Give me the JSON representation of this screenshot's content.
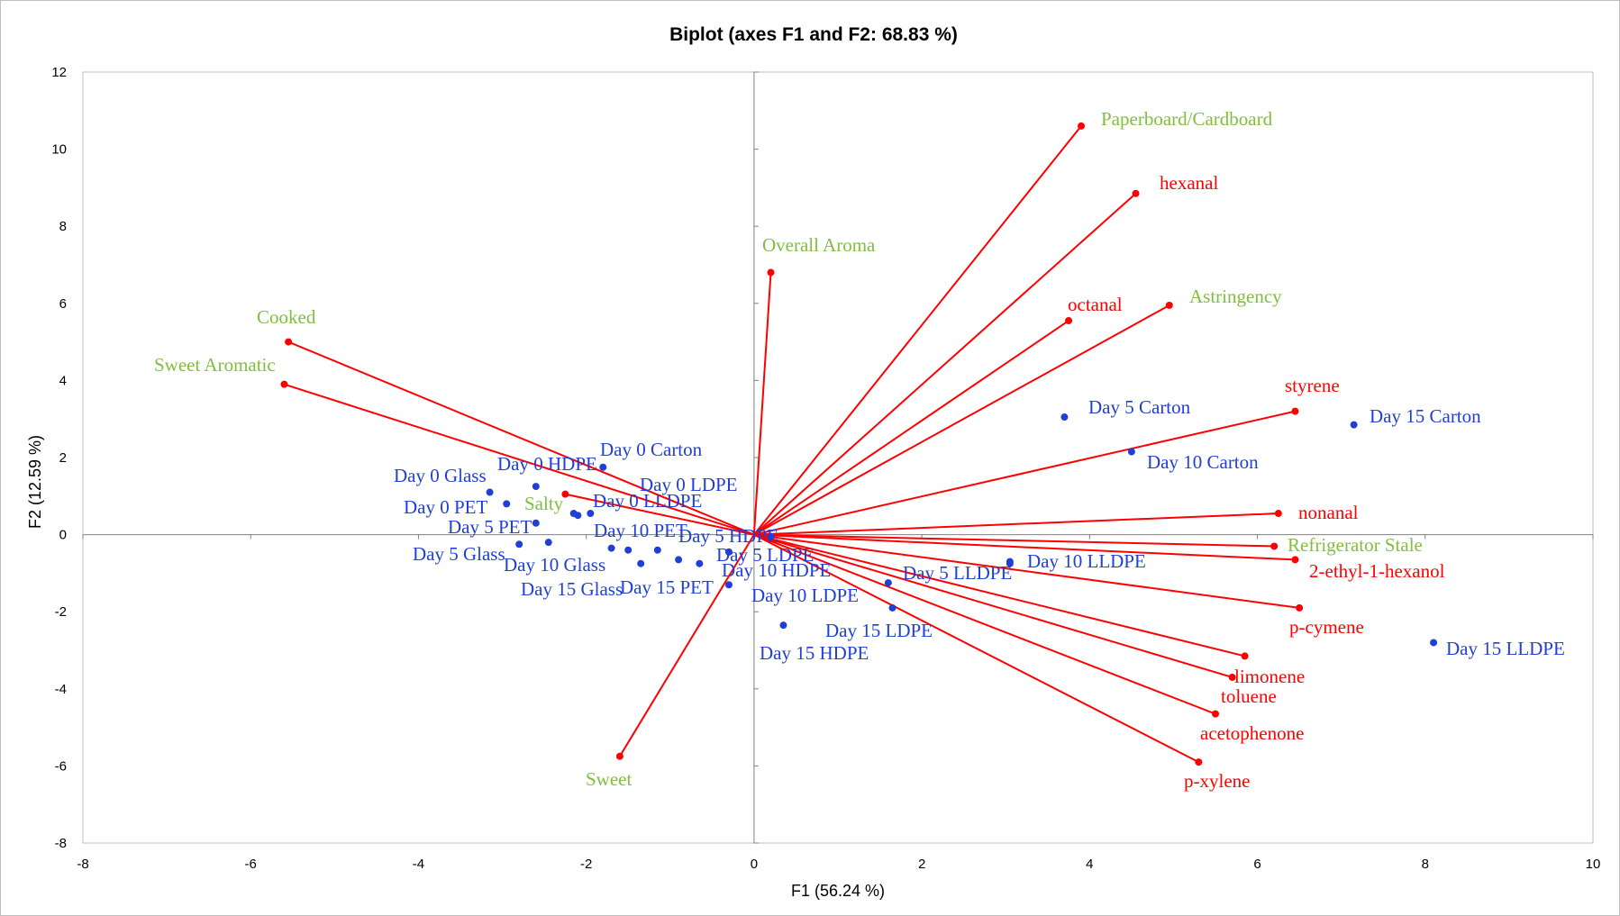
{
  "chart_data": {
    "type": "scatter",
    "title": "Biplot (axes F1 and F2: 68.83 %)",
    "xlabel": "F1 (56.24 %)",
    "ylabel": "F2 (12.59 %)",
    "xlim": [
      -8,
      10
    ],
    "ylim": [
      -8,
      12
    ],
    "xticks": [
      -8,
      -6,
      -4,
      -2,
      0,
      2,
      4,
      6,
      8,
      10
    ],
    "yticks": [
      -8,
      -6,
      -4,
      -2,
      0,
      2,
      4,
      6,
      8,
      10,
      12
    ],
    "grid": false,
    "colors": {
      "observations": "#1f3fd6",
      "volatiles": "#ff0000",
      "sensory": "#7fbf3f",
      "vectors": "#ff0000"
    },
    "observations": [
      {
        "label": "Day 0 Carton",
        "x": -1.8,
        "y": 1.75
      },
      {
        "label": "Day 0 HDPE",
        "x": -2.6,
        "y": 1.25
      },
      {
        "label": "Day 0 Glass",
        "x": -3.15,
        "y": 1.1
      },
      {
        "label": "Day 0 PET",
        "x": -2.95,
        "y": 0.8
      },
      {
        "label": "Day 0 LDPE",
        "x": -1.95,
        "y": 0.55
      },
      {
        "label": "Day 0 LLDPE",
        "x": -2.1,
        "y": 0.5
      },
      {
        "label": "Day 5 PET",
        "x": -2.6,
        "y": 0.3
      },
      {
        "label": "Day 5 Glass",
        "x": -2.8,
        "y": -0.25
      },
      {
        "label": "Day 10 Glass",
        "x": -2.45,
        "y": -0.2
      },
      {
        "label": "Day 10 PET",
        "x": -1.7,
        "y": -0.35
      },
      {
        "label": "Day 15 Glass",
        "x": -1.35,
        "y": -0.75
      },
      {
        "label": "Day 15 PET",
        "x": -0.65,
        "y": -0.75
      },
      {
        "label": "Day 5 HDPE",
        "x": 0.2,
        "y": -0.05
      },
      {
        "label": "Day 5 LDPE",
        "x": -0.3,
        "y": -0.45
      },
      {
        "label": "Day 10 HDPE",
        "x": -0.3,
        "y": -1.3
      },
      {
        "label": "Day 10 LDPE",
        "x": 1.6,
        "y": -1.25
      },
      {
        "label": "Day 15 LDPE",
        "x": 1.65,
        "y": -1.9
      },
      {
        "label": "Day 15 HDPE",
        "x": 0.35,
        "y": -2.35
      },
      {
        "label": "Day 5 LLDPE",
        "x": 3.05,
        "y": -0.7
      },
      {
        "label": "Day 10 LLDPE",
        "x": 3.05,
        "y": -0.75
      },
      {
        "label": "Day 5 Carton",
        "x": 3.7,
        "y": 3.05
      },
      {
        "label": "Day 10 Carton",
        "x": 4.5,
        "y": 2.15
      },
      {
        "label": "Day 15 Carton",
        "x": 7.15,
        "y": 2.85
      },
      {
        "label": "Day 15 LLDPE",
        "x": 8.1,
        "y": -2.8
      },
      {
        "label": "",
        "x": -1.5,
        "y": -0.4
      },
      {
        "label": "",
        "x": -1.15,
        "y": -0.4
      },
      {
        "label": "",
        "x": -0.9,
        "y": -0.65
      },
      {
        "label": "",
        "x": -2.15,
        "y": 0.55
      }
    ],
    "variables": [
      {
        "label": "Paperboard/Cardboard",
        "group": "sensory",
        "x": 3.9,
        "y": 10.6
      },
      {
        "label": "hexanal",
        "group": "volatile",
        "x": 4.55,
        "y": 8.85
      },
      {
        "label": "Overall Aroma",
        "group": "sensory",
        "x": 0.2,
        "y": 6.8
      },
      {
        "label": "octanal",
        "group": "volatile",
        "x": 3.75,
        "y": 5.55
      },
      {
        "label": "Astringency",
        "group": "sensory",
        "x": 4.95,
        "y": 5.95
      },
      {
        "label": "styrene",
        "group": "volatile",
        "x": 6.45,
        "y": 3.2
      },
      {
        "label": "nonanal",
        "group": "volatile",
        "x": 6.25,
        "y": 0.55
      },
      {
        "label": "Refrigerator Stale",
        "group": "sensory",
        "x": 6.2,
        "y": -0.3
      },
      {
        "label": "2-ethyl-1-hexanol",
        "group": "volatile",
        "x": 6.45,
        "y": -0.65
      },
      {
        "label": "p-cymene",
        "group": "volatile",
        "x": 6.5,
        "y": -1.9
      },
      {
        "label": "limonene",
        "group": "volatile",
        "x": 5.85,
        "y": -3.15
      },
      {
        "label": "toluene",
        "group": "volatile",
        "x": 5.7,
        "y": -3.7
      },
      {
        "label": "acetophenone",
        "group": "volatile",
        "x": 5.5,
        "y": -4.65
      },
      {
        "label": "p-xylene",
        "group": "volatile",
        "x": 5.3,
        "y": -5.9
      },
      {
        "label": "Sweet",
        "group": "sensory",
        "x": -1.6,
        "y": -5.75
      },
      {
        "label": "Salty",
        "group": "sensory",
        "x": -2.25,
        "y": 1.05
      },
      {
        "label": "Cooked",
        "group": "sensory",
        "x": -5.55,
        "y": 5.0
      },
      {
        "label": "Sweet Aromatic",
        "group": "sensory",
        "x": -5.6,
        "y": 3.9
      }
    ]
  }
}
